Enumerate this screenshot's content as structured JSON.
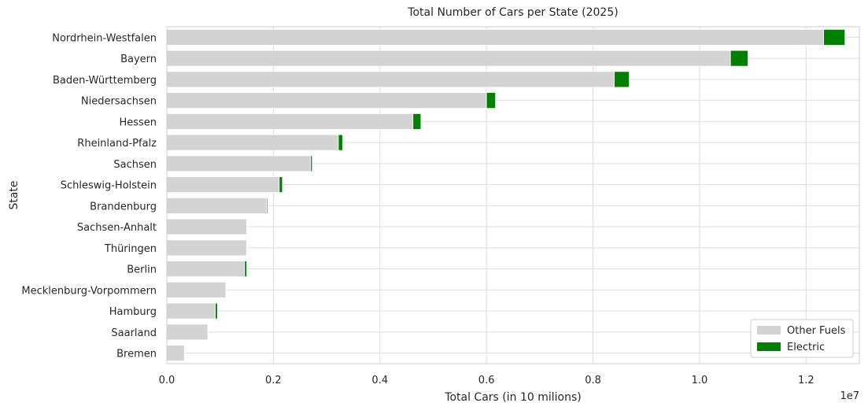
{
  "chart_data": {
    "type": "bar",
    "orientation": "horizontal",
    "stacked": true,
    "title": "Total Number of Cars per State (2025)",
    "xlabel": "Total Cars (in 10 milions)",
    "ylabel": "State",
    "x_offset_label": "1e7",
    "xlim": [
      0,
      13000000
    ],
    "xticks": [
      0,
      2000000,
      4000000,
      6000000,
      8000000,
      10000000,
      12000000
    ],
    "xtick_labels": [
      "0.0",
      "0.2",
      "0.4",
      "0.6",
      "0.8",
      "1.0",
      "1.2"
    ],
    "grid": true,
    "legend_position": "bottom-right",
    "categories": [
      "Nordrhein-Westfalen",
      "Bayern",
      "Baden-Württemberg",
      "Niedersachsen",
      "Hessen",
      "Rheinland-Pfalz",
      "Sachsen",
      "Schleswig-Holstein",
      "Brandenburg",
      "Sachsen-Anhalt",
      "Thüringen",
      "Berlin",
      "Mecklenburg-Vorpommern",
      "Hamburg",
      "Saarland",
      "Bremen"
    ],
    "series": [
      {
        "name": "Other Fuels",
        "color": "#d3d3d3",
        "values": [
          12330000,
          10580000,
          8400000,
          6000000,
          4620000,
          3220000,
          2700000,
          2110000,
          1870000,
          1500000,
          1500000,
          1460000,
          1110000,
          910000,
          770000,
          330000
        ]
      },
      {
        "name": "Electric",
        "color": "#008000",
        "values": [
          400000,
          330000,
          280000,
          170000,
          150000,
          80000,
          30000,
          60000,
          20000,
          10000,
          10000,
          40000,
          10000,
          40000,
          10000,
          10000
        ]
      }
    ]
  }
}
